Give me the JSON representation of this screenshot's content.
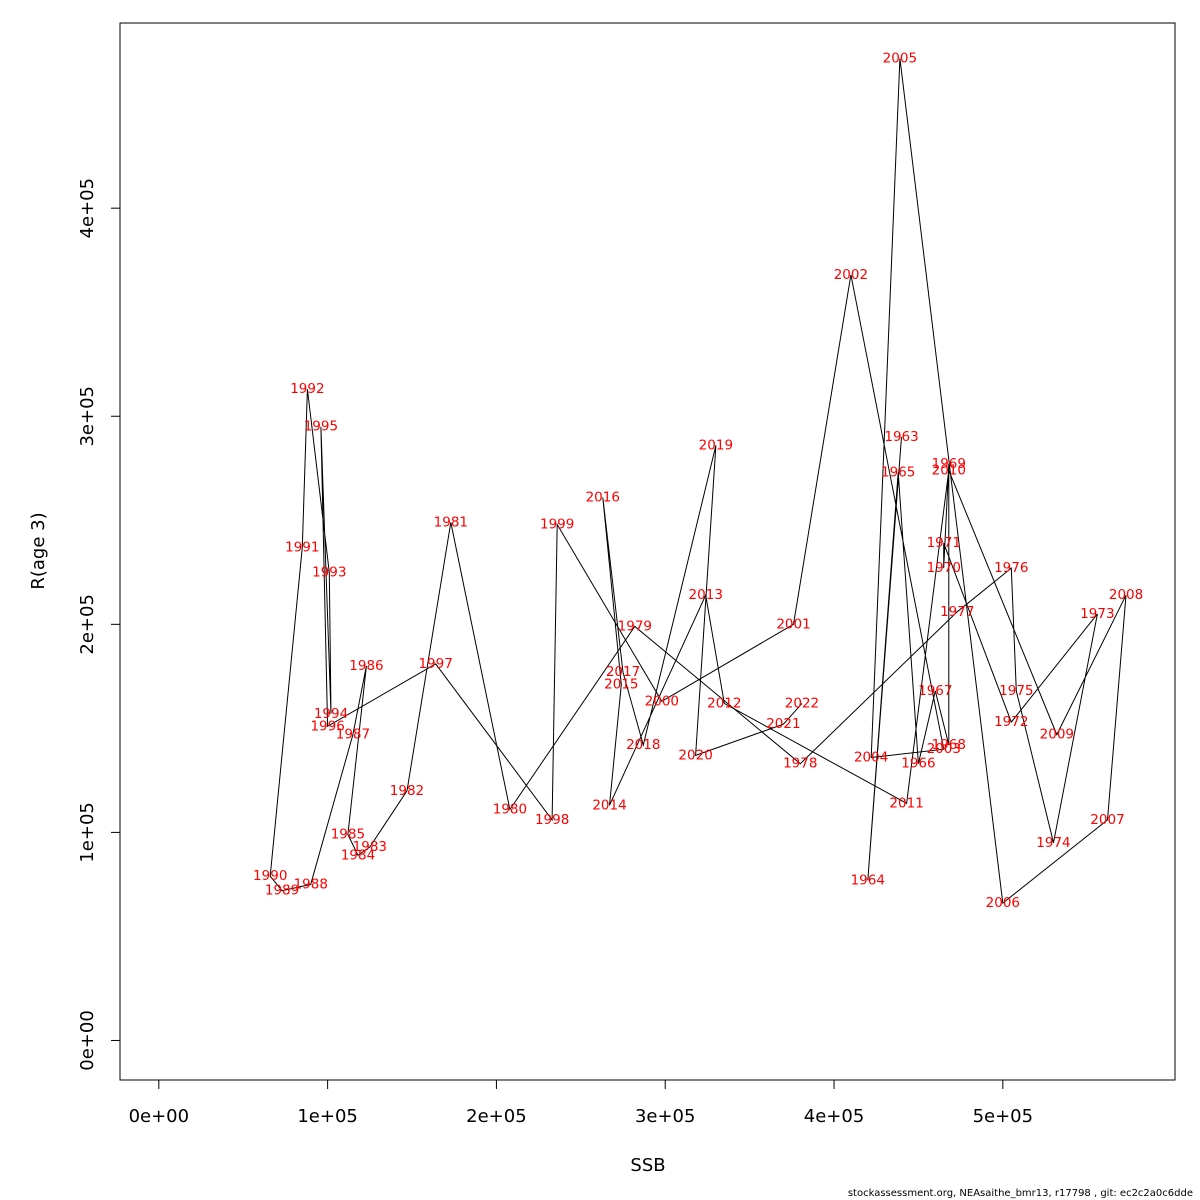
{
  "chart_data": {
    "type": "line",
    "xlabel": "SSB",
    "ylabel": "R(age 3)",
    "xlim": [
      -23000,
      602000
    ],
    "ylim": [
      -19000,
      489000
    ],
    "x_ticks": [
      0,
      100000,
      200000,
      300000,
      400000,
      500000
    ],
    "x_tick_labels": [
      "0e+00",
      "1e+05",
      "2e+05",
      "3e+05",
      "4e+05",
      "5e+05"
    ],
    "y_ticks": [
      0,
      100000,
      200000,
      300000,
      400000
    ],
    "y_tick_labels": [
      "0e+00",
      "1e+05",
      "2e+05",
      "3e+05",
      "4e+05"
    ],
    "line_color": "#000000",
    "label_color": "#ff0000",
    "points": [
      {
        "year": "1963",
        "ssb": 440000,
        "rec": 290000
      },
      {
        "year": "1964",
        "ssb": 420000,
        "rec": 77000
      },
      {
        "year": "1965",
        "ssb": 438000,
        "rec": 273000
      },
      {
        "year": "1966",
        "ssb": 450000,
        "rec": 133000
      },
      {
        "year": "1967",
        "ssb": 460000,
        "rec": 168000
      },
      {
        "year": "1968",
        "ssb": 468000,
        "rec": 142000
      },
      {
        "year": "1969",
        "ssb": 468000,
        "rec": 277000
      },
      {
        "year": "1970",
        "ssb": 465000,
        "rec": 227000
      },
      {
        "year": "1971",
        "ssb": 465000,
        "rec": 239000
      },
      {
        "year": "1972",
        "ssb": 505000,
        "rec": 153000
      },
      {
        "year": "1973",
        "ssb": 556000,
        "rec": 205000
      },
      {
        "year": "1974",
        "ssb": 530000,
        "rec": 95000
      },
      {
        "year": "1975",
        "ssb": 508000,
        "rec": 168000
      },
      {
        "year": "1976",
        "ssb": 505000,
        "rec": 227000
      },
      {
        "year": "1977",
        "ssb": 473000,
        "rec": 206000
      },
      {
        "year": "1978",
        "ssb": 380000,
        "rec": 133000
      },
      {
        "year": "1979",
        "ssb": 282000,
        "rec": 199000
      },
      {
        "year": "1980",
        "ssb": 208000,
        "rec": 111000
      },
      {
        "year": "1981",
        "ssb": 173000,
        "rec": 249000
      },
      {
        "year": "1982",
        "ssb": 147000,
        "rec": 120000
      },
      {
        "year": "1983",
        "ssb": 125000,
        "rec": 93000
      },
      {
        "year": "1984",
        "ssb": 118000,
        "rec": 89000
      },
      {
        "year": "1985",
        "ssb": 112000,
        "rec": 99000
      },
      {
        "year": "1986",
        "ssb": 123000,
        "rec": 180000
      },
      {
        "year": "1987",
        "ssb": 115000,
        "rec": 147000
      },
      {
        "year": "1988",
        "ssb": 90000,
        "rec": 75000
      },
      {
        "year": "1989",
        "ssb": 73000,
        "rec": 72000
      },
      {
        "year": "1990",
        "ssb": 66000,
        "rec": 79000
      },
      {
        "year": "1991",
        "ssb": 85000,
        "rec": 237000
      },
      {
        "year": "1992",
        "ssb": 88000,
        "rec": 313000
      },
      {
        "year": "1993",
        "ssb": 101000,
        "rec": 225000
      },
      {
        "year": "1994",
        "ssb": 102000,
        "rec": 157000
      },
      {
        "year": "1995",
        "ssb": 96000,
        "rec": 295000
      },
      {
        "year": "1996",
        "ssb": 100000,
        "rec": 151000
      },
      {
        "year": "1997",
        "ssb": 164000,
        "rec": 181000
      },
      {
        "year": "1998",
        "ssb": 233000,
        "rec": 106000
      },
      {
        "year": "1999",
        "ssb": 236000,
        "rec": 248000
      },
      {
        "year": "2000",
        "ssb": 298000,
        "rec": 163000
      },
      {
        "year": "2001",
        "ssb": 376000,
        "rec": 200000
      },
      {
        "year": "2002",
        "ssb": 410000,
        "rec": 368000
      },
      {
        "year": "2003",
        "ssb": 465000,
        "rec": 140000
      },
      {
        "year": "2004",
        "ssb": 422000,
        "rec": 136000
      },
      {
        "year": "2005",
        "ssb": 439000,
        "rec": 472000
      },
      {
        "year": "2006",
        "ssb": 500000,
        "rec": 66000
      },
      {
        "year": "2007",
        "ssb": 562000,
        "rec": 106000
      },
      {
        "year": "2008",
        "ssb": 573000,
        "rec": 214000
      },
      {
        "year": "2009",
        "ssb": 532000,
        "rec": 147000
      },
      {
        "year": "2010",
        "ssb": 468000,
        "rec": 274000
      },
      {
        "year": "2011",
        "ssb": 443000,
        "rec": 114000
      },
      {
        "year": "2012",
        "ssb": 335000,
        "rec": 162000
      },
      {
        "year": "2013",
        "ssb": 324000,
        "rec": 214000
      },
      {
        "year": "2014",
        "ssb": 267000,
        "rec": 113000
      },
      {
        "year": "2015",
        "ssb": 274000,
        "rec": 171000
      },
      {
        "year": "2016",
        "ssb": 263000,
        "rec": 261000
      },
      {
        "year": "2017",
        "ssb": 275000,
        "rec": 177000
      },
      {
        "year": "2018",
        "ssb": 287000,
        "rec": 142000
      },
      {
        "year": "2019",
        "ssb": 330000,
        "rec": 286000
      },
      {
        "year": "2020",
        "ssb": 318000,
        "rec": 137000
      },
      {
        "year": "2021",
        "ssb": 370000,
        "rec": 152000
      },
      {
        "year": "2022",
        "ssb": 381000,
        "rec": 162000
      }
    ]
  },
  "footer_text": "stockassessment.org, NEAsaithe_bmr13, r17798 , git: ec2c2a0c6dde"
}
